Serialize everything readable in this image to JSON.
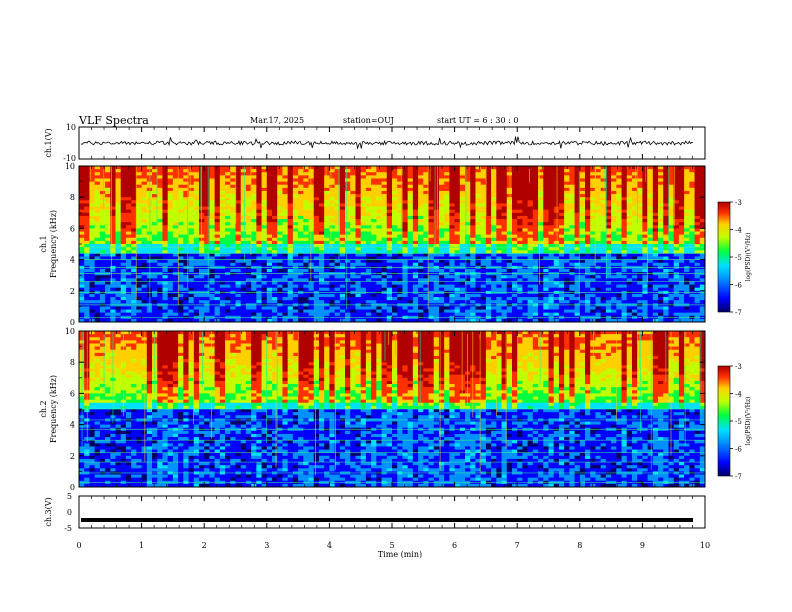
{
  "header": {
    "title": "VLF Spectra",
    "date": "Mar.17, 2025",
    "station": "station=OUJ",
    "start_ut": "start  UT =   6  : 30 : 0"
  },
  "colors": {
    "colormap": [
      "#000066",
      "#0000ff",
      "#0090ff",
      "#00e0ff",
      "#00ff40",
      "#c0ff00",
      "#ffd000",
      "#ff3000",
      "#b00000"
    ],
    "trace": "#000000"
  },
  "chart_data": [
    {
      "type": "line",
      "panel": "ch1-waveform",
      "ylabel": "ch.1(V)",
      "ylim": [
        -10,
        10
      ],
      "yticks": [
        "10",
        "-10"
      ],
      "xlim": [
        0,
        10
      ],
      "description_values": {
        "baseline": 0,
        "typical_amplitude": 1.2,
        "spike_amplitude": 4
      }
    },
    {
      "type": "heatmap",
      "panel": "ch1-spectrogram",
      "ylabel": "ch.1\nFrequency  (kHz)",
      "ylabel_line1": "ch.1",
      "ylabel_line2": "Frequency  (kHz)",
      "ylim": [
        0,
        10
      ],
      "yticks": [
        "0",
        "2",
        "4",
        "6",
        "8",
        "10"
      ],
      "xlim": [
        0,
        10
      ],
      "colorbar": {
        "label": "log(PSD)(V²/Hz)",
        "range": [
          -7,
          -3
        ],
        "ticks": [
          "-3",
          "-4",
          "-5",
          "-6",
          "-7"
        ]
      },
      "features": {
        "noise_floor_khz": 5,
        "spheric_band_khz": [
          5,
          10
        ],
        "tone_lines_khz": [
          0.3,
          1.1,
          1.9,
          2.6,
          3.1,
          3.5,
          4.0,
          4.4,
          4.8
        ]
      }
    },
    {
      "type": "heatmap",
      "panel": "ch2-spectrogram",
      "ylabel": "ch.2\nFrequency  (kHz)",
      "ylabel_line1": "ch.2",
      "ylabel_line2": "Frequency  (kHz)",
      "ylim": [
        0,
        10
      ],
      "yticks": [
        "0",
        "2",
        "4",
        "6",
        "8",
        "10"
      ],
      "xlim": [
        0,
        10
      ],
      "colorbar": {
        "label": "log(PSD)(V²/Hz)",
        "range": [
          -7,
          -3
        ],
        "ticks": [
          "-3",
          "-4",
          "-5",
          "-6",
          "-7"
        ]
      },
      "features": {
        "noise_floor_khz": 5.5,
        "spheric_band_khz": [
          5.5,
          10
        ],
        "tone_lines_khz": [
          0.3,
          0.9,
          1.6,
          2.2,
          3.0,
          3.7,
          4.3,
          5.0
        ]
      }
    },
    {
      "type": "line",
      "panel": "ch3-waveform",
      "ylabel": "ch.3(V)",
      "ylim": [
        -5,
        5
      ],
      "yticks": [
        "5",
        "0",
        "-5"
      ],
      "xlim": [
        0,
        10
      ],
      "description_values": {
        "constant_level": -2.5
      }
    }
  ],
  "xaxis": {
    "label": "Time  (min)",
    "ticks": [
      "0",
      "1",
      "2",
      "3",
      "4",
      "5",
      "6",
      "7",
      "8",
      "9",
      "10"
    ]
  }
}
